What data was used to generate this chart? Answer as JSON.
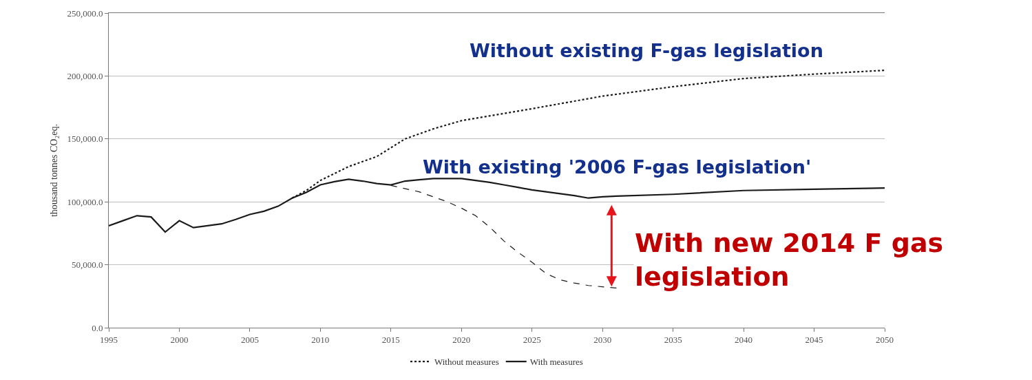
{
  "chart_data": {
    "type": "line",
    "ylabel": "thousand tonnes CO₂eq.",
    "xlim": [
      1995,
      2050
    ],
    "xticks": [
      1995,
      2000,
      2005,
      2010,
      2015,
      2020,
      2025,
      2030,
      2035,
      2040,
      2045,
      2050
    ],
    "ylim": [
      0,
      250000
    ],
    "yticks": [
      {
        "value": 0,
        "label": "0.0"
      },
      {
        "value": 50000,
        "label": "50,000.0"
      },
      {
        "value": 100000,
        "label": "100,000.0"
      },
      {
        "value": 150000,
        "label": "150,000.0"
      },
      {
        "value": 200000,
        "label": "200,000.0"
      },
      {
        "value": 250000,
        "label": "250,000.0"
      }
    ],
    "grid": "y",
    "legend": "bottom",
    "marker": "none",
    "series": [
      {
        "name": "Without measures",
        "color": "#1a1a1a",
        "line_style": "dotted",
        "x": [
          2008,
          2009,
          2010,
          2012,
          2014,
          2016,
          2018,
          2020,
          2025,
          2030,
          2035,
          2040,
          2045,
          2050
        ],
        "values": [
          103000,
          109000,
          117000,
          128000,
          136000,
          150000,
          158000,
          164500,
          174000,
          184000,
          191500,
          198000,
          201500,
          204500
        ]
      },
      {
        "name": "With measures",
        "color": "#1a1a1a",
        "line_style": "solid",
        "x": [
          1995,
          1996,
          1997,
          1998,
          1999,
          2000,
          2001,
          2002,
          2003,
          2004,
          2005,
          2006,
          2007,
          2008,
          2009,
          2010,
          2011,
          2012,
          2013,
          2014,
          2015,
          2016,
          2017,
          2018,
          2019,
          2020,
          2021,
          2022,
          2023,
          2024,
          2025,
          2026,
          2027,
          2028,
          2029,
          2030,
          2031,
          2035,
          2040,
          2045,
          2050
        ],
        "values": [
          81000,
          85000,
          89000,
          88000,
          76000,
          85000,
          79500,
          81000,
          82500,
          86000,
          90000,
          92500,
          96500,
          103000,
          107500,
          113500,
          116000,
          118000,
          116500,
          114500,
          113500,
          116500,
          117500,
          118500,
          118500,
          118500,
          117000,
          115500,
          113500,
          111500,
          109500,
          108000,
          106500,
          105000,
          103000,
          104000,
          104500,
          106000,
          109000,
          110000,
          111000
        ]
      },
      {
        "color": "#1a1a1a",
        "line_style": "dashed",
        "x": [
          2015,
          2017,
          2019,
          2020,
          2021,
          2022,
          2023,
          2024,
          2025,
          2026,
          2027,
          2028,
          2029,
          2030,
          2031
        ],
        "values": [
          113000,
          108000,
          100000,
          95000,
          89000,
          80000,
          69000,
          60000,
          52000,
          43000,
          38000,
          35500,
          33500,
          32500,
          31500
        ]
      }
    ],
    "annotations": [
      "Without existing F-gas legislation",
      "With existing '2006 F-gas legislation'",
      "With new 2014 F gas\nlegislation"
    ]
  }
}
